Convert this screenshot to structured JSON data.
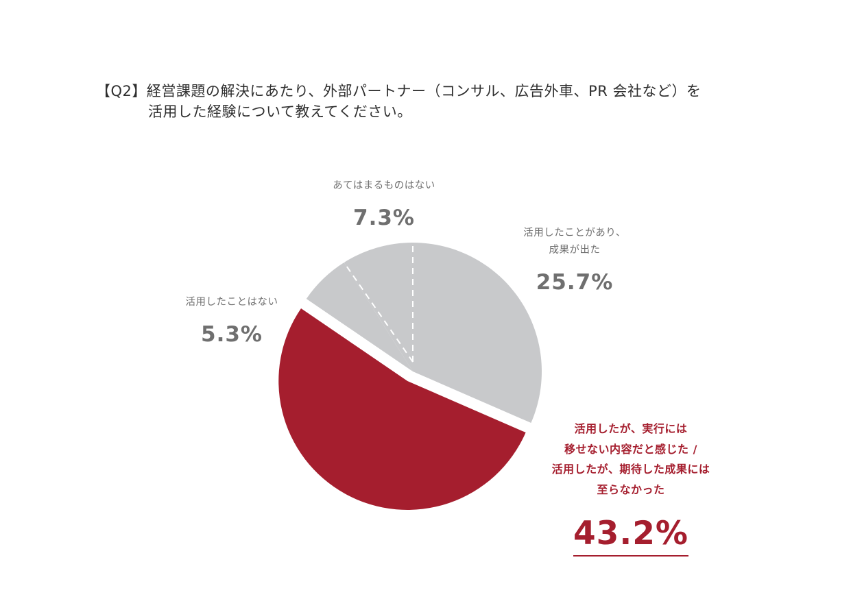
{
  "question": {
    "line1": "【Q2】経営課題の解決にあたり、外部パートナー（コンサル、広告外車、PR 会社など）を",
    "line2": "活用した経験について教えてください。"
  },
  "chart_data": {
    "type": "pie",
    "title": "",
    "slices": [
      {
        "key": "result",
        "label_lines": [
          "活用したことがあり、",
          "成果が出た"
        ],
        "value": 25.7,
        "value_label": "25.7%",
        "color": "#c8c9cb",
        "highlight": false
      },
      {
        "key": "no_result",
        "label_lines": [
          "活用したが、実行には",
          "移せない内容だと感じた /",
          "活用したが、期待した成果には",
          "至らなかった"
        ],
        "value": 43.2,
        "value_label": "43.2%",
        "color": "#a51e2e",
        "highlight": true
      },
      {
        "key": "unused",
        "label_lines": [
          "活用したことはない"
        ],
        "value": 5.3,
        "value_label": "5.3%",
        "color": "#c8c9cb",
        "highlight": false
      },
      {
        "key": "none",
        "label_lines": [
          "あてはまるものはない"
        ],
        "value": 7.3,
        "value_label": "7.3%",
        "color": "#c8c9cb",
        "highlight": false
      }
    ],
    "colors": {
      "highlight": "#a51e2e",
      "base": "#c8c9cb",
      "text": "#6f6f6f"
    }
  }
}
